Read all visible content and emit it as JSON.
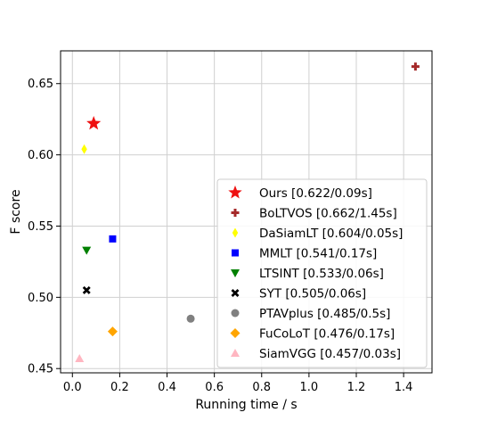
{
  "chart_data": {
    "type": "scatter",
    "title": "",
    "xlabel": "Running time / s",
    "ylabel": "F score",
    "xlim": [
      -0.05,
      1.52
    ],
    "ylim": [
      0.447,
      0.673
    ],
    "xticks": [
      0.0,
      0.2,
      0.4,
      0.6,
      0.8,
      1.0,
      1.2,
      1.4
    ],
    "xtick_labels": [
      "0.0",
      "0.2",
      "0.4",
      "0.6",
      "0.8",
      "1.0",
      "1.2",
      "1.4"
    ],
    "yticks": [
      0.45,
      0.5,
      0.55,
      0.6,
      0.65
    ],
    "ytick_labels": [
      "0.45",
      "0.50",
      "0.55",
      "0.60",
      "0.65"
    ],
    "grid": true,
    "legend_position": "lower-right",
    "series": [
      {
        "name": "Ours [0.622/0.09s]",
        "x": 0.09,
        "y": 0.622,
        "marker": "star",
        "color": "#ee1111"
      },
      {
        "name": "BoLTVOS [0.662/1.45s]",
        "x": 1.45,
        "y": 0.662,
        "marker": "plus",
        "color": "#a52a2a"
      },
      {
        "name": "DaSiamLT [0.604/0.05s]",
        "x": 0.05,
        "y": 0.604,
        "marker": "thin-diamond",
        "color": "#ffff00"
      },
      {
        "name": "MMLT [0.541/0.17s]",
        "x": 0.17,
        "y": 0.541,
        "marker": "square",
        "color": "#0000ff"
      },
      {
        "name": "LTSINT [0.533/0.06s]",
        "x": 0.06,
        "y": 0.533,
        "marker": "triangle-down",
        "color": "#008000"
      },
      {
        "name": "SYT [0.505/0.06s]",
        "x": 0.06,
        "y": 0.505,
        "marker": "x",
        "color": "#000000"
      },
      {
        "name": "PTAVplus [0.485/0.5s]",
        "x": 0.5,
        "y": 0.485,
        "marker": "circle",
        "color": "#808080"
      },
      {
        "name": "FuCoLoT [0.476/0.17s]",
        "x": 0.17,
        "y": 0.476,
        "marker": "diamond",
        "color": "#ffa500"
      },
      {
        "name": "SiamVGG [0.457/0.03s]",
        "x": 0.03,
        "y": 0.457,
        "marker": "triangle-up",
        "color": "#ffb6c1"
      }
    ]
  }
}
